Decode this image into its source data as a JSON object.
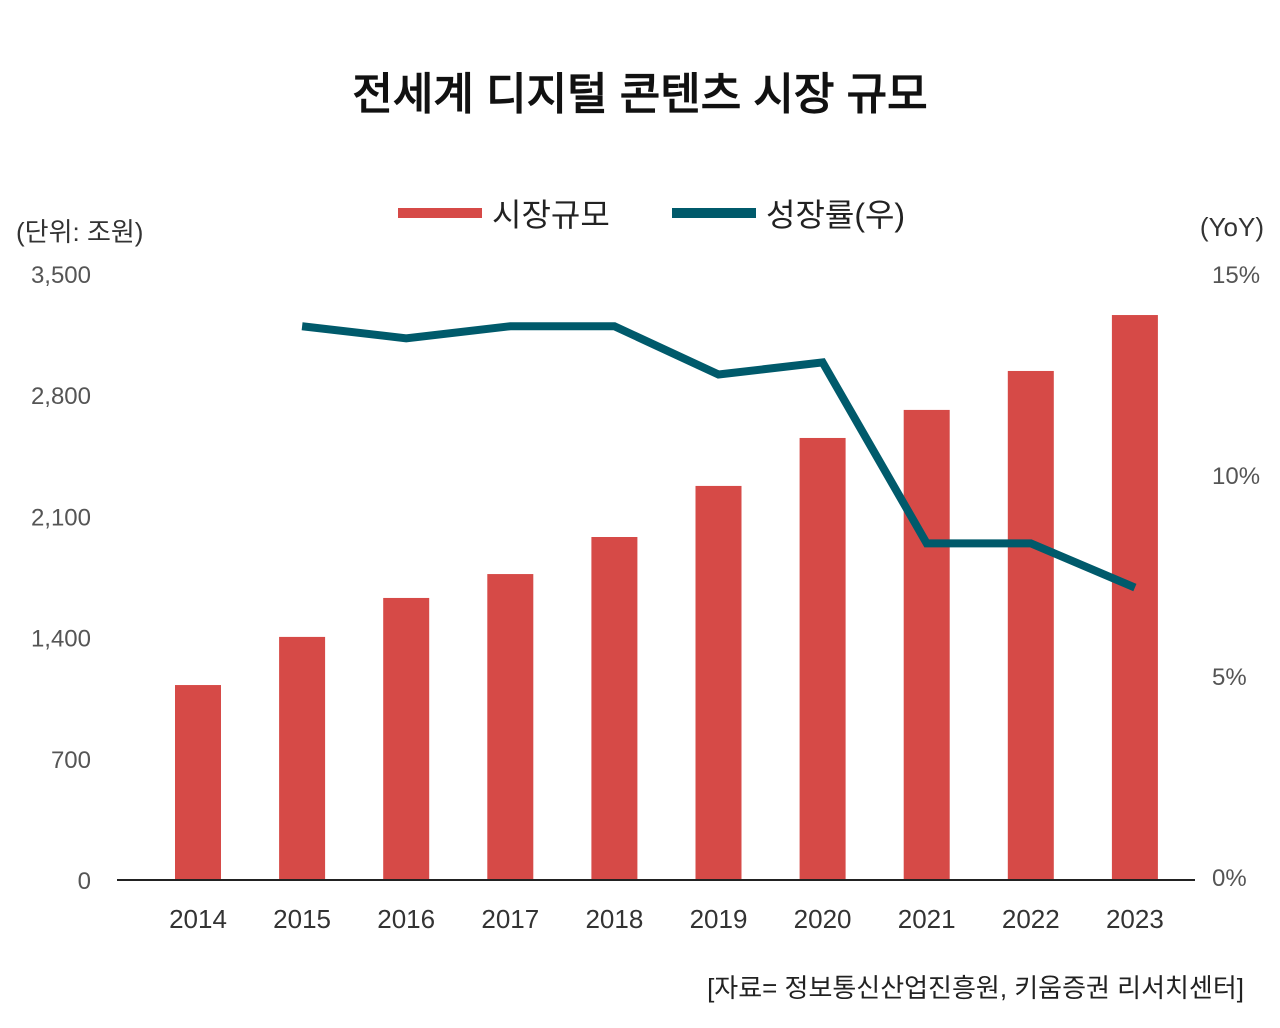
{
  "chart_data": {
    "type": "bar+line",
    "title": "전세계 디지털 콘텐츠 시장 규모",
    "left_unit": "(단위: 조원)",
    "right_unit": "(YoY)",
    "source": "[자료= 정보통신산업진흥원, 키움증권 리서치센터]",
    "categories": [
      "2014",
      "2015",
      "2016",
      "2017",
      "2018",
      "2019",
      "2020",
      "2021",
      "2022",
      "2023"
    ],
    "y_left": {
      "ylim": [
        0,
        3500
      ],
      "ticks": [
        "0",
        "700",
        "1,400",
        "2,100",
        "2,800",
        "3,500"
      ],
      "tick_values": [
        0,
        700,
        1400,
        2100,
        2800,
        3500
      ]
    },
    "y_right": {
      "ylim": [
        0,
        15
      ],
      "ticks": [
        "0%",
        "5%",
        "10%",
        "15%"
      ],
      "tick_values": [
        0,
        5,
        10,
        15
      ]
    },
    "grid": false,
    "legend_placement": "top-center",
    "series": [
      {
        "name": "시장규모",
        "type": "bar",
        "axis": "left",
        "color": "#d64a47",
        "values": [
          1126,
          1404,
          1629,
          1767,
          1981,
          2276,
          2553,
          2715,
          2940,
          3263
        ]
      },
      {
        "name": "성장률(우)",
        "type": "line",
        "axis": "right",
        "color": "#005a6b",
        "values": [
          null,
          13.7,
          13.4,
          13.7,
          13.7,
          12.5,
          12.8,
          8.3,
          8.3,
          7.2
        ]
      }
    ]
  }
}
